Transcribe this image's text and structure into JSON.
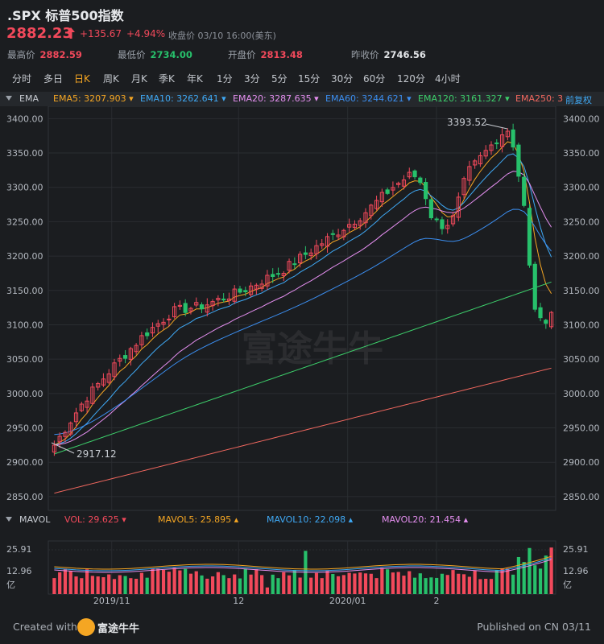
{
  "header": {
    "title": ".SPX 标普500指数",
    "price": "2882.23",
    "change": "+135.67",
    "change_pct": "+4.94%",
    "close_info": "收盘价 03/10 16:00(美东)",
    "stats": [
      {
        "label": "最高价",
        "value": "2882.59",
        "tone": "up"
      },
      {
        "label": "最低价",
        "value": "2734.00",
        "tone": "dn"
      },
      {
        "label": "开盘价",
        "value": "2813.48",
        "tone": "up"
      },
      {
        "label": "昨收价",
        "value": "2746.56",
        "tone": "nt"
      }
    ]
  },
  "tabs": [
    {
      "label": "分时",
      "active": false
    },
    {
      "label": "多日",
      "active": false
    },
    {
      "label": "日K",
      "active": true
    },
    {
      "label": "周K",
      "active": false
    },
    {
      "label": "月K",
      "active": false
    },
    {
      "label": "季K",
      "active": false
    },
    {
      "label": "年K",
      "active": false
    },
    {
      "label": "1分",
      "active": false
    },
    {
      "label": "3分",
      "active": false
    },
    {
      "label": "5分",
      "active": false
    },
    {
      "label": "15分",
      "active": false
    },
    {
      "label": "30分",
      "active": false
    },
    {
      "label": "60分",
      "active": false
    },
    {
      "label": "120分",
      "active": false
    },
    {
      "label": "4小时",
      "active": false
    }
  ],
  "ema_bar": {
    "label": "EMA",
    "items": [
      {
        "text": "EMA5: 3207.903 ▾",
        "color": "#f5a623"
      },
      {
        "text": "EMA10: 3262.641 ▾",
        "color": "#3fa9f5"
      },
      {
        "text": "EMA20: 3287.635 ▾",
        "color": "#e58ff0"
      },
      {
        "text": "EMA60: 3244.621 ▾",
        "color": "#3b8ef0"
      },
      {
        "text": "EMA120: 3161.327 ▾",
        "color": "#3dcf6b"
      },
      {
        "text": "EMA250: 3",
        "color": "#f2685f"
      }
    ],
    "adjust": "前复权"
  },
  "vol_bar": {
    "label": "MAVOL",
    "items": [
      {
        "text": "VOL: 29.625 ▾",
        "color": "#f2495b"
      },
      {
        "text": "MAVOL5: 25.895 ▴",
        "color": "#f5a623"
      },
      {
        "text": "MAVOL10: 22.098 ▴",
        "color": "#3fa9f5"
      },
      {
        "text": "MAVOL20: 21.454 ▴",
        "color": "#e58ff0"
      }
    ]
  },
  "chart_data": {
    "type": "candlestick",
    "price_axis_ticks": [
      "3400.00",
      "3350.00",
      "3300.00",
      "3250.00",
      "3200.00",
      "3150.00",
      "3100.00",
      "3050.00",
      "3000.00",
      "2950.00",
      "2900.00",
      "2850.00"
    ],
    "price_ylim": [
      2830,
      3418
    ],
    "max_label": "3393.52",
    "min_label": "2917.12",
    "date_labels": [
      "2019/11",
      "12",
      "2020/01",
      "2"
    ],
    "date_label_positions": [
      12.5,
      37.5,
      59,
      76.5
    ],
    "volume_axis_ticks": [
      "25.91",
      "12.96",
      "亿"
    ],
    "colors": {
      "up": "#f2495b",
      "down": "#27c06b"
    },
    "watermark": "富途牛牛"
  },
  "footer": {
    "created": "Created with",
    "brand": "富途牛牛",
    "published": "Published on CN 03/11"
  }
}
